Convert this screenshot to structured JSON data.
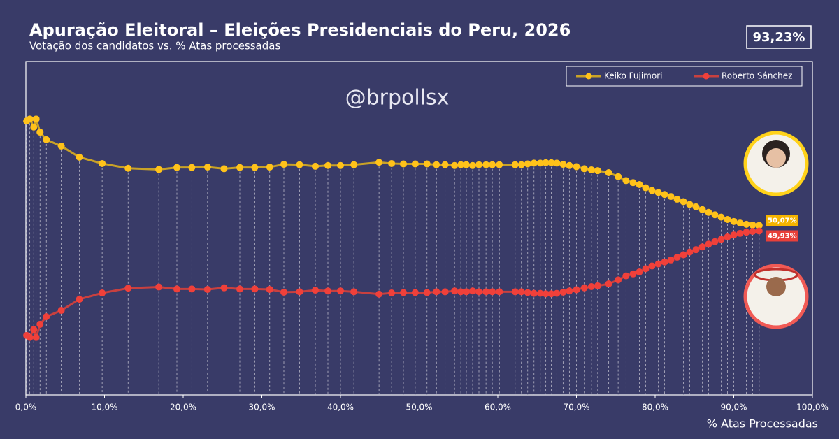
{
  "chart_data": {
    "type": "line",
    "title": "Apuração Eleitoral – Eleições Presidenciais do Peru, 2026",
    "subtitle": "Votação dos candidatos vs. % Atas processadas",
    "badge": "93,23%",
    "watermark": "@brpollsx",
    "xlabel": "% Atas Processadas",
    "xlim": [
      0,
      100
    ],
    "xticks": [
      {
        "value": 0,
        "label": "0,0%"
      },
      {
        "value": 10,
        "label": "10,0%"
      },
      {
        "value": 20,
        "label": "20,0%"
      },
      {
        "value": 30,
        "label": "30,0%"
      },
      {
        "value": 40,
        "label": "40,0%"
      },
      {
        "value": 50,
        "label": "50,0%"
      },
      {
        "value": 60,
        "label": "60,0%"
      },
      {
        "value": 70,
        "label": "70,0%"
      },
      {
        "value": 80,
        "label": "80,0%"
      },
      {
        "value": 90,
        "label": "90,0%"
      },
      {
        "value": 100,
        "label": "100,0%"
      }
    ],
    "ylim": [
      45.8,
      54.2
    ],
    "legend": "top-right",
    "x": [
      0.1,
      0.5,
      1.0,
      1.3,
      1.8,
      2.6,
      4.5,
      6.8,
      9.7,
      13.0,
      16.9,
      19.2,
      21.1,
      23.1,
      25.2,
      27.2,
      29.1,
      31.0,
      32.8,
      34.8,
      36.8,
      38.4,
      40.0,
      41.7,
      44.9,
      46.5,
      48.0,
      49.5,
      51.0,
      52.2,
      53.3,
      54.5,
      55.3,
      56.0,
      56.8,
      57.6,
      58.5,
      59.3,
      60.2,
      62.2,
      63.0,
      63.8,
      64.6,
      65.4,
      66.1,
      66.8,
      67.5,
      68.3,
      69.1,
      70.0,
      71.0,
      71.9,
      72.7,
      74.1,
      75.3,
      76.3,
      77.2,
      78.0,
      78.8,
      79.6,
      80.4,
      81.2,
      82.0,
      82.8,
      83.6,
      84.4,
      85.2,
      86.0,
      86.8,
      87.6,
      88.4,
      89.2,
      90.0,
      90.8,
      91.6,
      92.4,
      93.23
    ],
    "series": [
      {
        "name": "Keiko Fujimori",
        "color": "#ffc21a",
        "line_color": "#c9a227",
        "label_color": "#f5b400",
        "values": [
          52.7,
          52.75,
          52.55,
          52.75,
          52.42,
          52.23,
          52.07,
          51.79,
          51.63,
          51.51,
          51.48,
          51.53,
          51.53,
          51.54,
          51.5,
          51.53,
          51.53,
          51.54,
          51.61,
          51.6,
          51.56,
          51.58,
          51.58,
          51.6,
          51.66,
          51.63,
          51.62,
          51.62,
          51.62,
          51.6,
          51.6,
          51.58,
          51.6,
          51.6,
          51.58,
          51.6,
          51.6,
          51.6,
          51.6,
          51.6,
          51.6,
          51.62,
          51.64,
          51.64,
          51.65,
          51.65,
          51.64,
          51.61,
          51.58,
          51.55,
          51.5,
          51.47,
          51.45,
          51.4,
          51.3,
          51.2,
          51.15,
          51.1,
          51.02,
          50.95,
          50.9,
          50.85,
          50.8,
          50.73,
          50.67,
          50.6,
          50.54,
          50.47,
          50.4,
          50.34,
          50.28,
          50.22,
          50.17,
          50.13,
          50.1,
          50.08,
          50.07
        ],
        "value_labels": [
          null,
          null,
          null,
          null,
          null,
          null,
          null,
          null,
          null,
          null,
          null,
          null,
          null,
          null,
          null,
          null,
          null,
          null,
          null,
          null,
          null,
          null,
          null,
          null,
          null,
          null,
          null,
          null,
          null,
          null,
          null,
          null,
          null,
          null,
          null,
          null,
          null,
          null,
          null,
          null,
          null,
          null,
          null,
          null,
          null,
          null,
          null,
          null,
          null,
          null,
          null,
          null,
          null,
          null,
          null,
          null,
          null,
          null,
          null,
          null,
          null,
          null,
          null,
          null,
          null,
          null,
          null,
          null,
          null,
          null,
          null,
          null,
          null,
          null,
          null,
          null,
          "50,07%"
        ]
      },
      {
        "name": "Roberto Sánchez",
        "color": "#f0403a",
        "line_color": "#c8403f",
        "label_color": "#e8403a",
        "values": [
          47.3,
          47.25,
          47.45,
          47.25,
          47.58,
          47.77,
          47.93,
          48.21,
          48.37,
          48.49,
          48.52,
          48.47,
          48.47,
          48.46,
          48.5,
          48.47,
          48.47,
          48.46,
          48.39,
          48.4,
          48.44,
          48.42,
          48.42,
          48.4,
          48.34,
          48.37,
          48.38,
          48.38,
          48.38,
          48.4,
          48.4,
          48.42,
          48.4,
          48.4,
          48.42,
          48.4,
          48.4,
          48.4,
          48.4,
          48.4,
          48.4,
          48.38,
          48.36,
          48.36,
          48.35,
          48.35,
          48.36,
          48.39,
          48.42,
          48.45,
          48.5,
          48.53,
          48.55,
          48.6,
          48.7,
          48.8,
          48.85,
          48.9,
          48.98,
          49.05,
          49.1,
          49.15,
          49.2,
          49.27,
          49.33,
          49.4,
          49.46,
          49.53,
          49.6,
          49.66,
          49.72,
          49.78,
          49.83,
          49.87,
          49.9,
          49.92,
          49.93
        ],
        "value_labels": [
          null,
          null,
          null,
          null,
          null,
          null,
          null,
          null,
          null,
          null,
          null,
          null,
          null,
          null,
          null,
          null,
          null,
          null,
          null,
          null,
          null,
          null,
          null,
          null,
          null,
          null,
          null,
          null,
          null,
          null,
          null,
          null,
          null,
          null,
          null,
          null,
          null,
          null,
          null,
          null,
          null,
          null,
          null,
          null,
          null,
          null,
          null,
          null,
          null,
          null,
          null,
          null,
          null,
          null,
          null,
          null,
          null,
          null,
          null,
          null,
          null,
          null,
          null,
          null,
          null,
          null,
          null,
          null,
          null,
          null,
          null,
          null,
          null,
          null,
          null,
          null,
          "49,93%"
        ]
      }
    ]
  }
}
